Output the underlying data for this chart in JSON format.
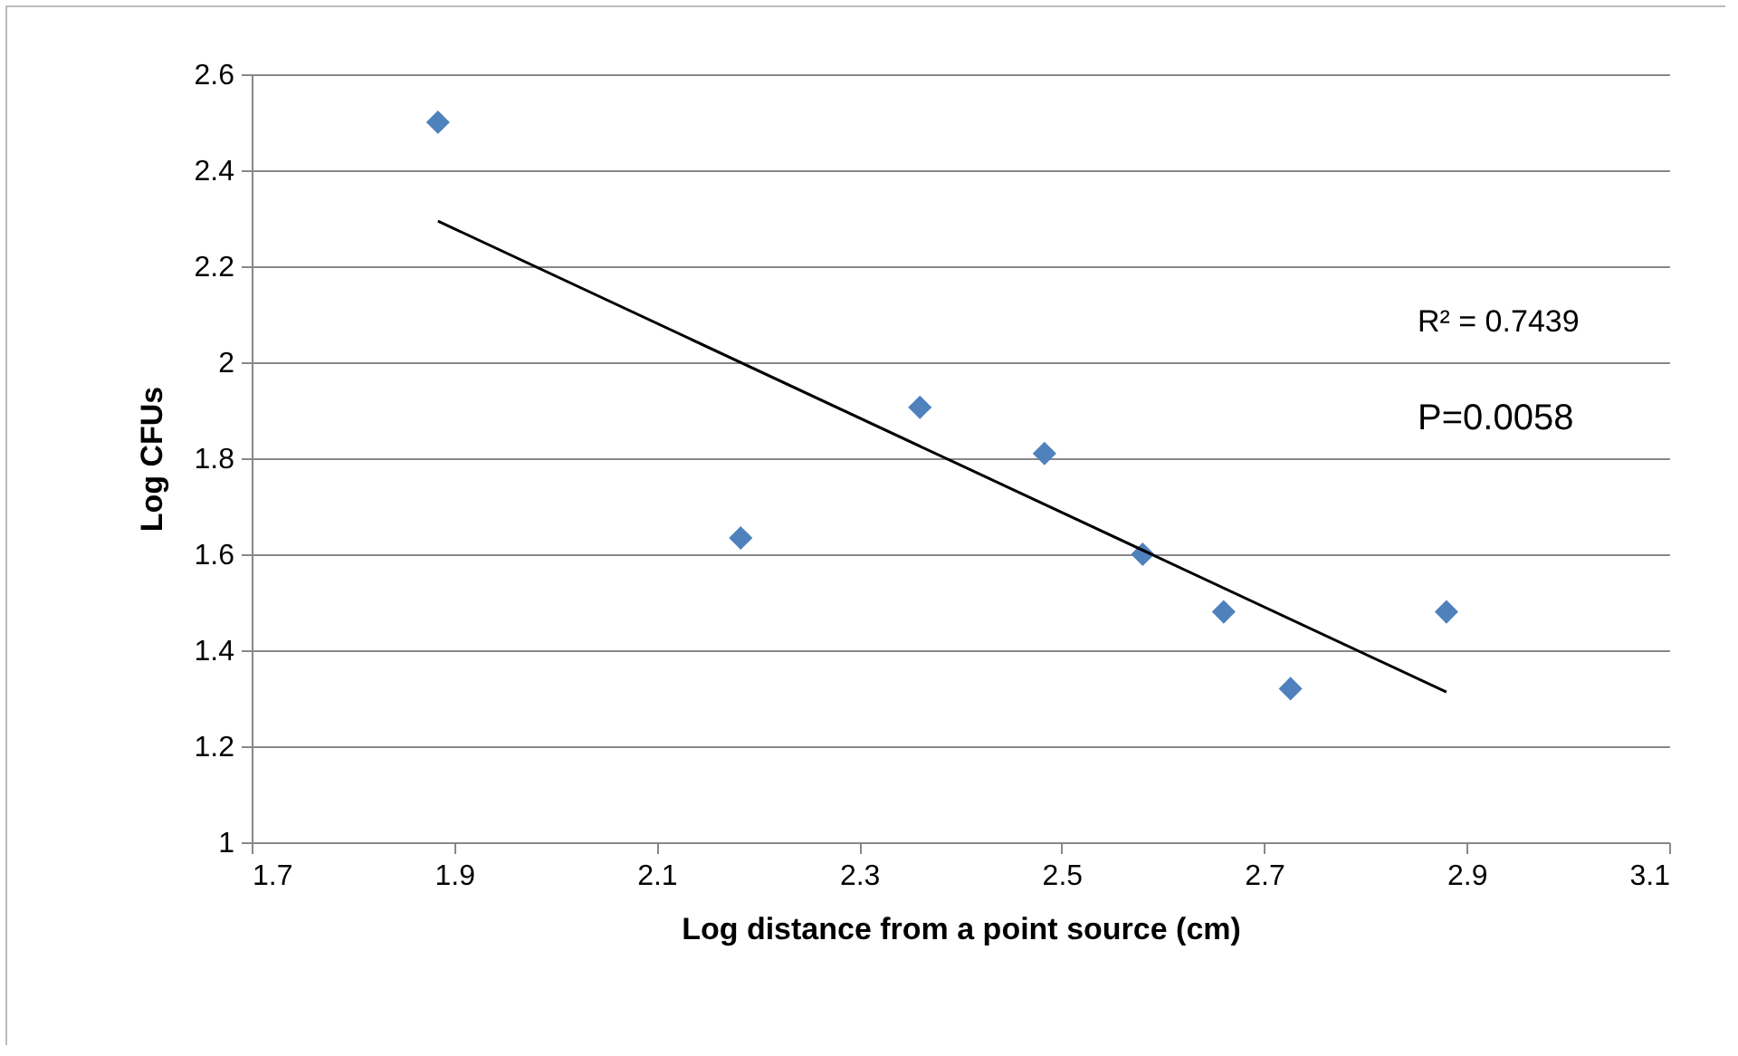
{
  "chart_data": {
    "type": "scatter",
    "xlabel": "Log distance from a point source (cm)",
    "ylabel": "Log CFUs",
    "series": [
      {
        "color": "#4f81bd",
        "x": [
          1.884,
          2.183,
          2.36,
          2.483,
          2.58,
          2.66,
          2.726,
          2.88
        ],
        "values": [
          2.5,
          1.634,
          1.906,
          1.81,
          1.6,
          1.48,
          1.32,
          1.48
        ]
      },
      {
        "type": "line",
        "marker": "none",
        "color": "#000000",
        "x": [
          1.884,
          2.88
        ],
        "values": [
          2.294,
          1.313
        ]
      }
    ],
    "marker": "diamond",
    "grid": "y",
    "xlim": [
      1.7,
      3.1
    ],
    "xticks": [
      1.7,
      1.9,
      2.1,
      2.3,
      2.5,
      2.7,
      2.9,
      3.1
    ],
    "ylim": [
      1,
      2.6
    ],
    "yticks": [
      1,
      1.2,
      1.4,
      1.6,
      1.8,
      2,
      2.2,
      2.4,
      2.6
    ],
    "annotations": [
      "R² = 0.7439",
      "P=0.0058"
    ]
  }
}
